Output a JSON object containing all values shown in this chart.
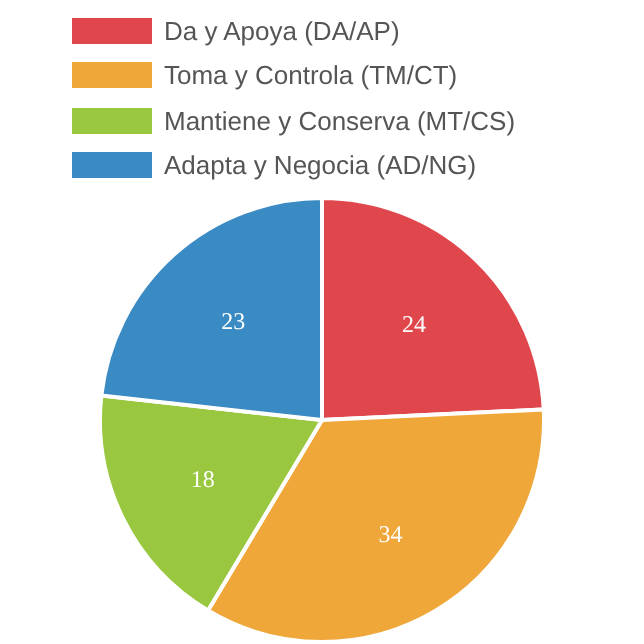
{
  "chart_data": {
    "type": "pie",
    "categories": [
      "Da y Apoya (DA/AP)",
      "Toma y Controla (TM/CT)",
      "Mantiene y Conserva (MT/CS)",
      "Adapta y Negocia (AD/NG)"
    ],
    "values": [
      24,
      34,
      18,
      23
    ],
    "colors": [
      "#e0474c",
      "#f0a73a",
      "#99c73f",
      "#3a8ac4"
    ],
    "data_labels": true,
    "legend": "top"
  }
}
